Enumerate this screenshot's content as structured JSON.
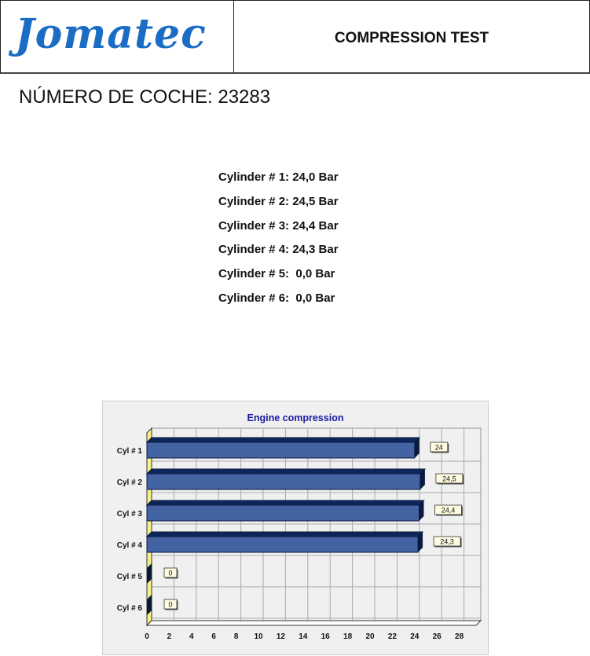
{
  "header": {
    "logo": "Jomatec",
    "title": "COMPRESSION TEST"
  },
  "car_number": "NÚMERO DE COCHE: 23283",
  "cylinders": [
    "Cylinder # 1: 24,0 Bar",
    "Cylinder # 2: 24,5 Bar",
    "Cylinder # 3: 24,4 Bar",
    "Cylinder # 4: 24,3 Bar",
    "Cylinder # 5:  0,0 Bar",
    "Cylinder # 6:  0,0 Bar"
  ],
  "chart_data": {
    "type": "bar",
    "orientation": "horizontal",
    "title": "Engine compression",
    "categories": [
      "Cyl # 1",
      "Cyl # 2",
      "Cyl # 3",
      "Cyl # 4",
      "Cyl # 5",
      "Cyl # 6"
    ],
    "values": [
      24,
      24.5,
      24.4,
      24.3,
      0,
      0
    ],
    "data_labels": [
      "24",
      "24,5",
      "24,4",
      "24,3",
      "0",
      "0"
    ],
    "xlim": [
      0,
      28
    ],
    "xticks": [
      0,
      2,
      4,
      6,
      8,
      10,
      12,
      14,
      16,
      18,
      20,
      22,
      24,
      26,
      28
    ],
    "grid": true,
    "style": "3d",
    "colors": {
      "bar": "#4463a3",
      "bar_top": "#0d2659",
      "wall": "#f5ef8a",
      "background": "#f0f0f0",
      "title": "#1a1aa0"
    }
  }
}
